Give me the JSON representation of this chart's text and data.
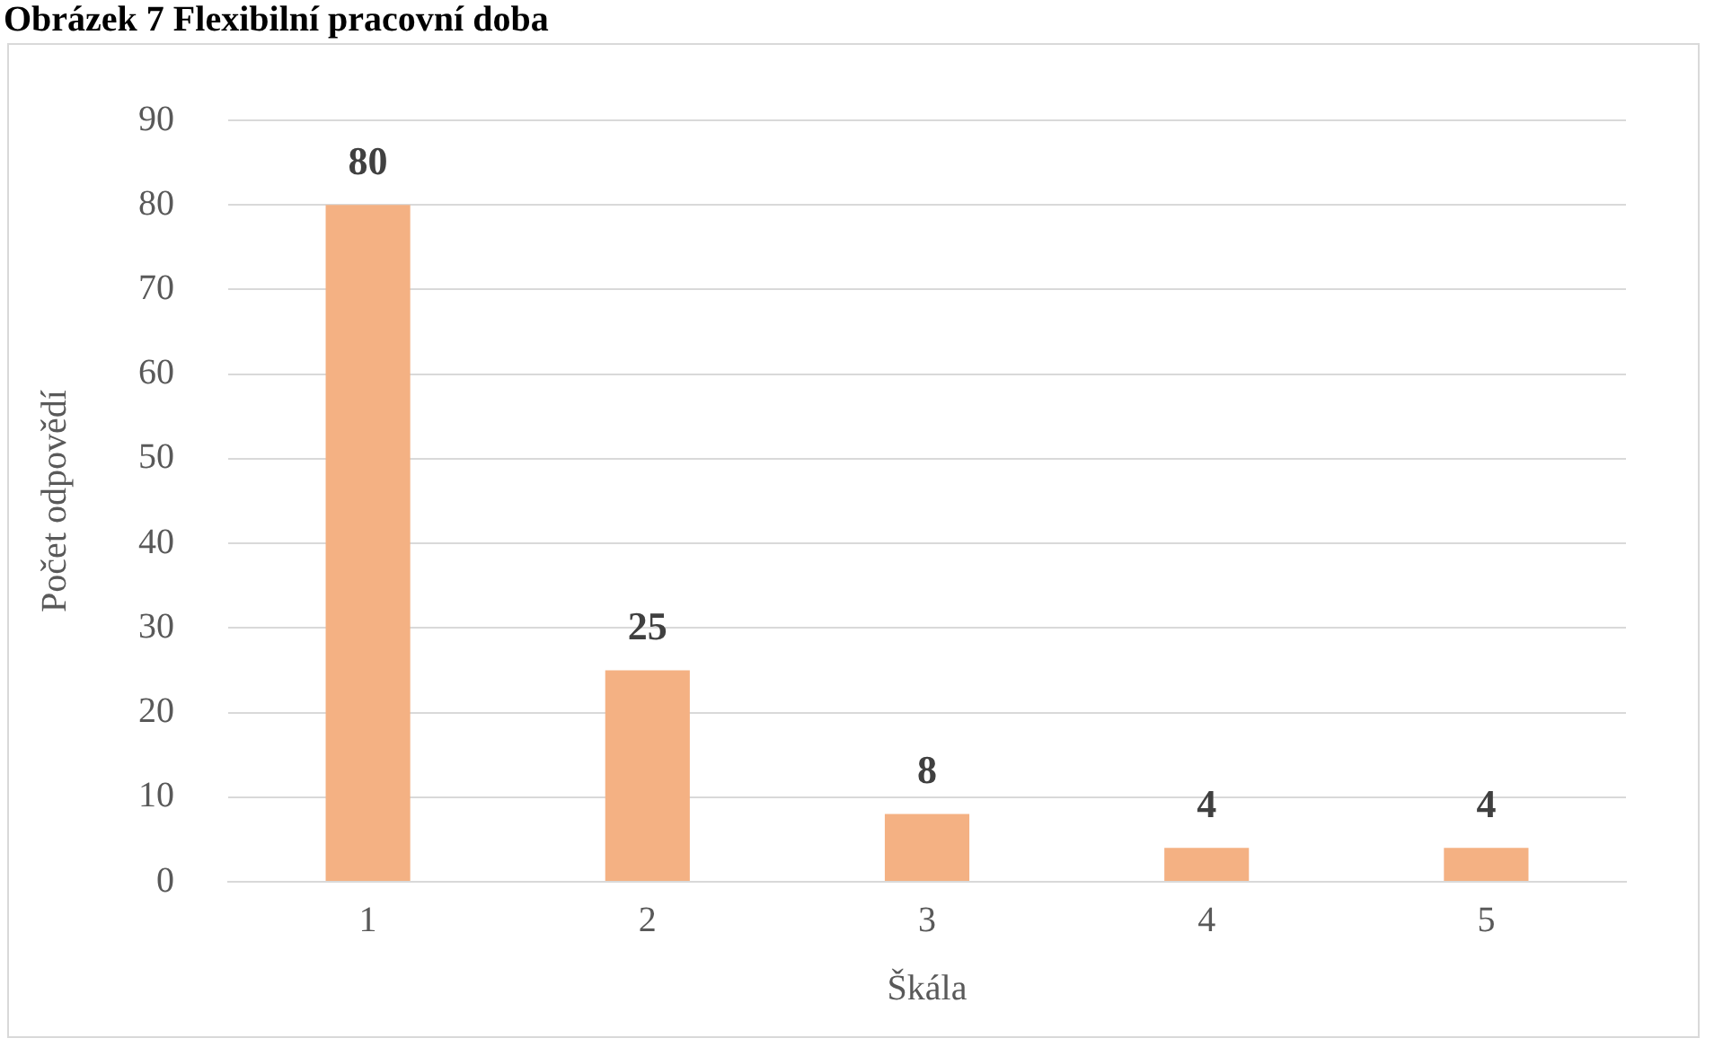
{
  "chart_data": {
    "type": "bar",
    "title": "Obrázek 7 Flexibilní pracovní doba",
    "xlabel": "Škála",
    "ylabel": "Počet odpovědí",
    "categories": [
      "1",
      "2",
      "3",
      "4",
      "5"
    ],
    "values": [
      80,
      25,
      8,
      4,
      4
    ],
    "color": "#f4b183",
    "ylim": [
      0,
      90
    ],
    "yticks": [
      0,
      10,
      20,
      30,
      40,
      50,
      60,
      70,
      80,
      90
    ],
    "grid": "y",
    "data_labels": true,
    "legend": false
  }
}
